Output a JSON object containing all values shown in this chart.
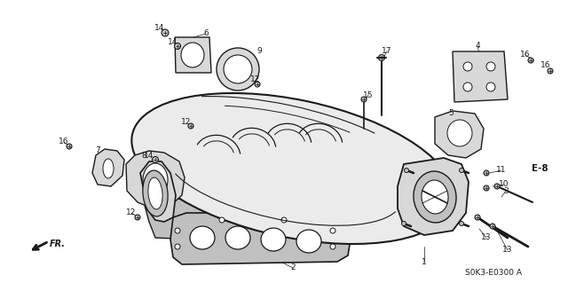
{
  "background_color": "#ffffff",
  "diagram_code": "S0K3-E0300 A",
  "fr_label": "FR.",
  "eb_label": "E-8",
  "line_color": "#1a1a1a",
  "gray_fill": "#d8d8d8",
  "light_gray": "#ebebeb",
  "mid_gray": "#c0c0c0",
  "label_fontsize": 6.5,
  "label_fontsize_bold": 7.5,
  "diagram_fontsize": 6.5
}
